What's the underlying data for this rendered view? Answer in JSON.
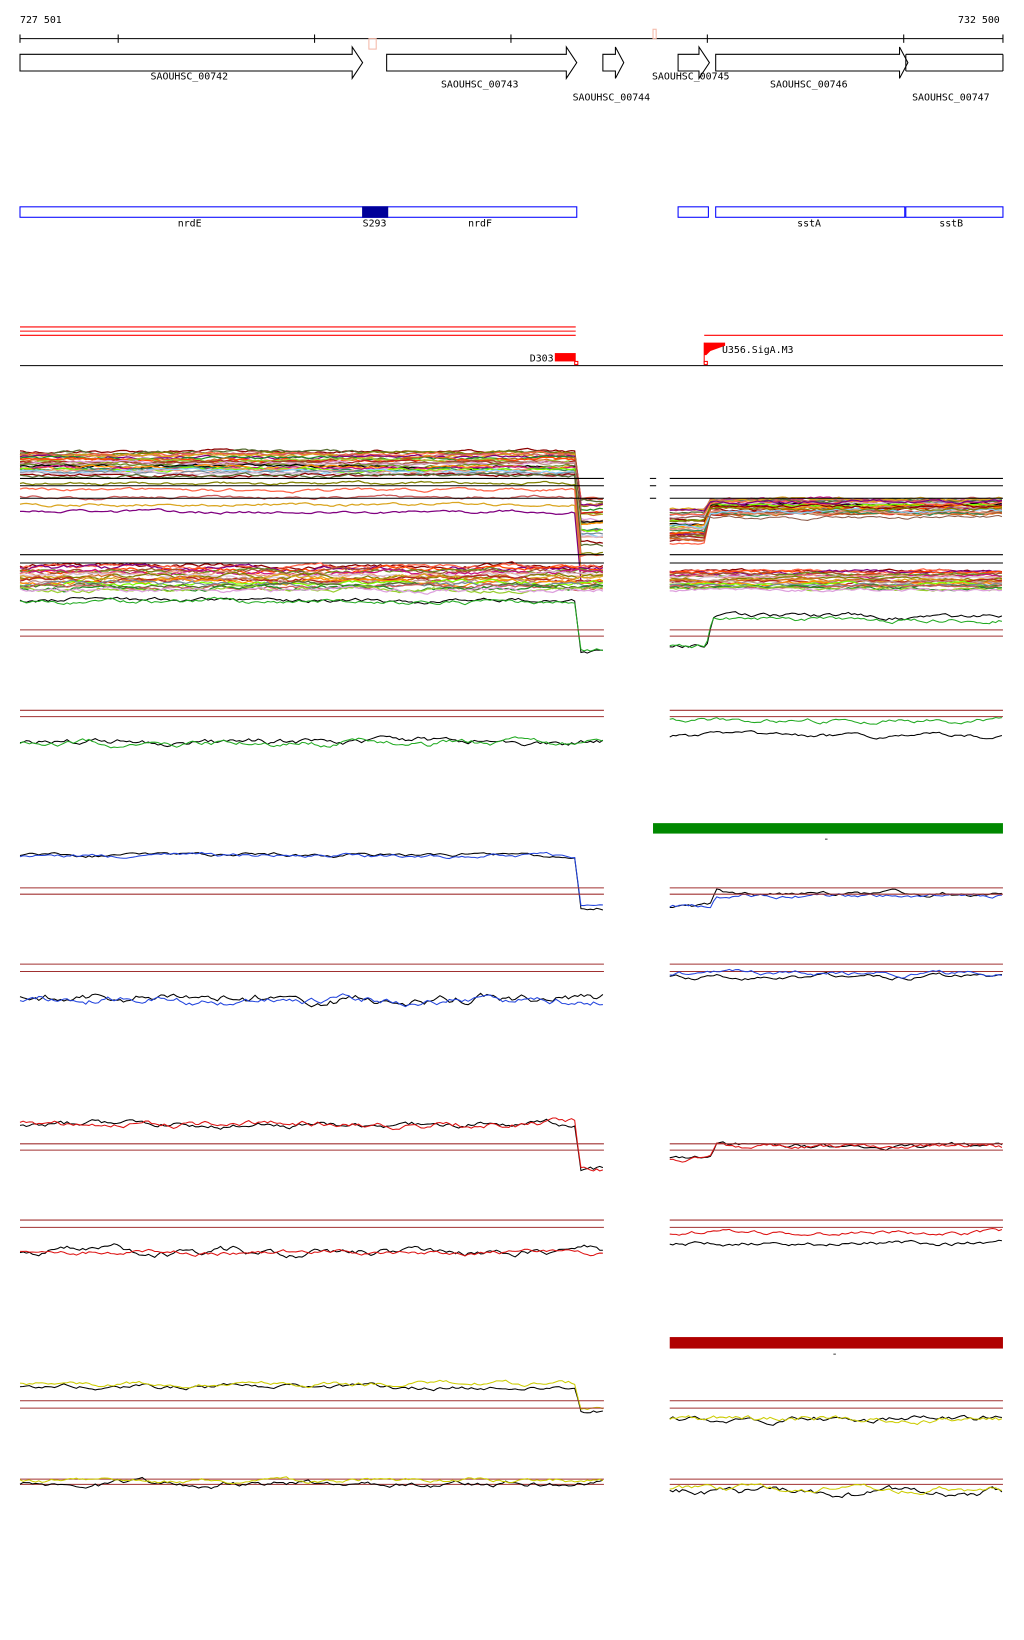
{
  "ruler": {
    "start_label": "727 501",
    "end_label": "732 500"
  },
  "genes": [
    {
      "label": "SAOUHSC_00742"
    },
    {
      "label": "SAOUHSC_00743"
    },
    {
      "label": "SAOUHSC_00744"
    },
    {
      "label": "SAOUHSC_00745"
    },
    {
      "label": "SAOUHSC_00746"
    },
    {
      "label": "SAOUHSC_00747"
    }
  ],
  "annotations": [
    {
      "label": "nrdE"
    },
    {
      "label": "S293"
    },
    {
      "label": "nrdF"
    },
    {
      "label": "sstA"
    },
    {
      "label": "sstB"
    }
  ],
  "features": {
    "left_label": "D303",
    "right_label": "U356.SigA.M3"
  },
  "bars": {
    "green_label": "-",
    "red_label": "-"
  },
  "colors": {
    "gene_stroke": "#000000",
    "annotation_blue": "#0000ff",
    "annotation_dark": "#000099",
    "feature_red": "#ff0000",
    "ref_line": "#a03030",
    "green_bar": "#008800",
    "red_bar": "#b00000",
    "trace_green": "#22aa22",
    "trace_blue": "#2244dd",
    "trace_red": "#dd1111",
    "trace_yellow": "#cccc00"
  }
}
